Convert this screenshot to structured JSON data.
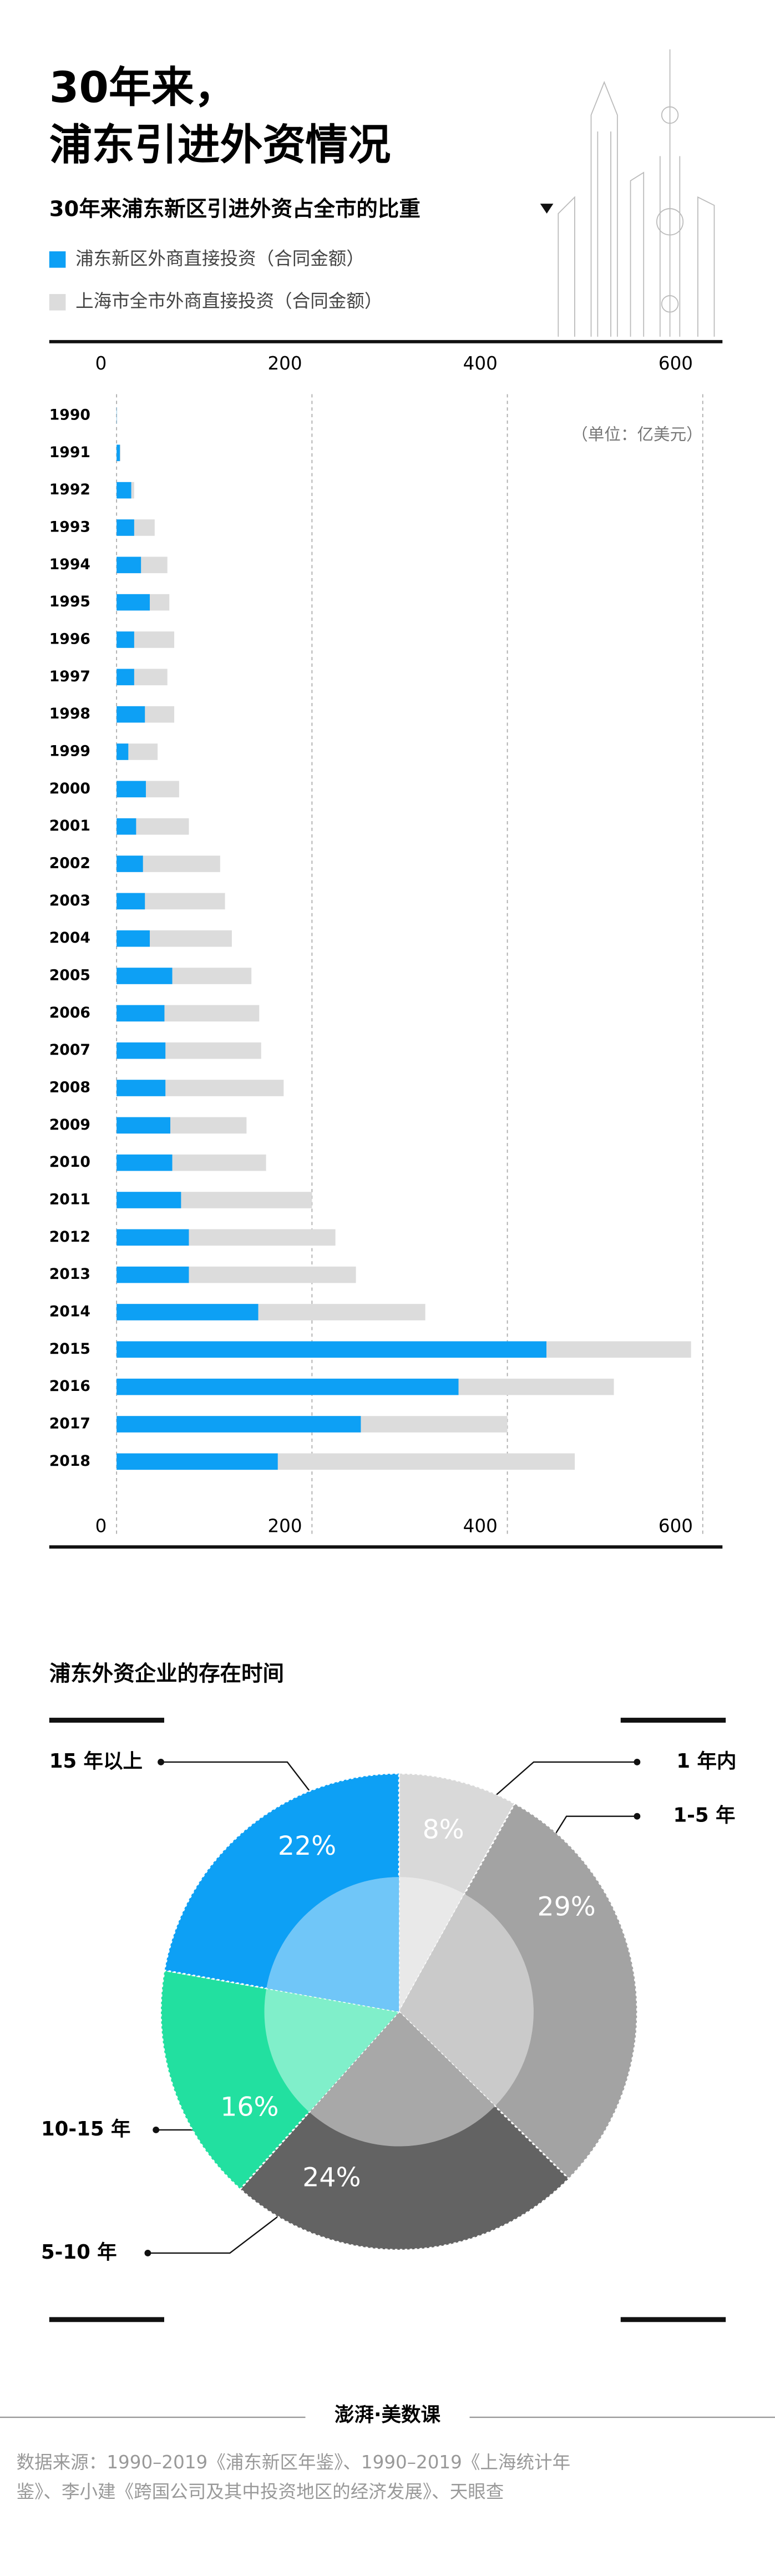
{
  "header": {
    "title_lines": [
      "30年来，",
      "浦东引进外资情况"
    ],
    "subtitle": "30年来浦东新区引进外资占全市的比重"
  },
  "chart_data": [
    {
      "type": "bar",
      "orientation": "horizontal",
      "unit_note": "（单位：亿美元）",
      "categories": [
        "1990",
        "1991",
        "1992",
        "1993",
        "1994",
        "1995",
        "1996",
        "1997",
        "1998",
        "1999",
        "2000",
        "2001",
        "2002",
        "2003",
        "2004",
        "2005",
        "2006",
        "2007",
        "2008",
        "2009",
        "2010",
        "2011",
        "2012",
        "2013",
        "2014",
        "2015",
        "2016",
        "2017",
        "2018"
      ],
      "series": [
        {
          "name": "上海市全市外商直接投资（合同金额）",
          "color": "#dcdcdc",
          "values": [
            0.4,
            4,
            18,
            39,
            52,
            54,
            59,
            52,
            59,
            42,
            64,
            74,
            106,
            111,
            118,
            138,
            146,
            148,
            171,
            133,
            153,
            200,
            224,
            245,
            316,
            588,
            509,
            400,
            469
          ]
        },
        {
          "name": "浦东新区外商直接投资（合同金额）",
          "color": "#0da0f5",
          "values": [
            0.2,
            3.4,
            15,
            18,
            25,
            34,
            18,
            18,
            29,
            12,
            30,
            20,
            27,
            29,
            34,
            57,
            49,
            50,
            50,
            55,
            57,
            66,
            74,
            74,
            145,
            440,
            350,
            250,
            165
          ]
        }
      ],
      "xlim": [
        0,
        600
      ],
      "xticks": [
        0,
        200,
        400,
        600
      ],
      "grid": true
    },
    {
      "type": "pie",
      "title": "浦东外资企业的存在时间",
      "categories": [
        "1 年内",
        "1-5 年",
        "5-10 年",
        "10-15 年",
        "15 年以上"
      ],
      "values": [
        8,
        29,
        24,
        16,
        22
      ],
      "value_labels": [
        "8%",
        "29%",
        "24%",
        "16%",
        "22%"
      ],
      "colors": [
        "#d9d9d9",
        "#a3a3a3",
        "#636363",
        "#22e0a0",
        "#0da0f5"
      ],
      "inner_colors": [
        "#e9e9e9",
        "#cacaca",
        "#a8a8a8",
        "#80efca",
        "#70c6f8"
      ]
    }
  ],
  "footer": {
    "logo": "澎湃·美数课",
    "source_lines": [
      "数据来源：1990–2019《浦东新区年鉴》、1990–2019《上海统计年",
      "鉴》、李小建《跨国公司及其中投资地区的经济发展》、天眼查"
    ]
  }
}
